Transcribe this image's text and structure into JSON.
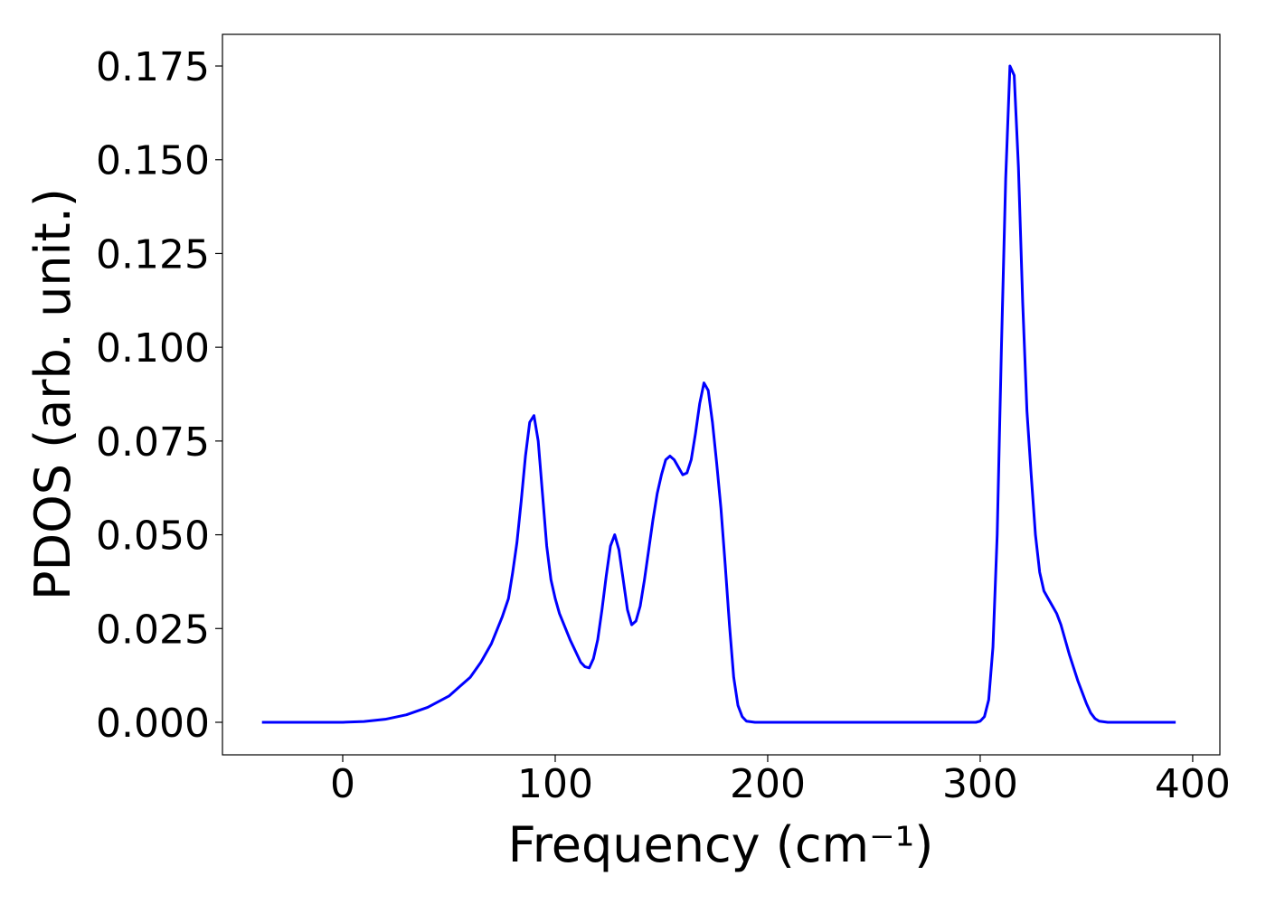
{
  "chart_data": {
    "type": "line",
    "xlabel": "Frequency (cm⁻¹)",
    "ylabel": "PDOS (arb. unit.)",
    "series": [
      {
        "color": "#0000ff",
        "x": [
          -38,
          0,
          10,
          20,
          30,
          40,
          50,
          60,
          65,
          70,
          75,
          78,
          80,
          82,
          84,
          86,
          88,
          90,
          92,
          94,
          96,
          98,
          100,
          102,
          107,
          112,
          114,
          116,
          118,
          120,
          122,
          124,
          126,
          128,
          130,
          132,
          134,
          136,
          138,
          140,
          142,
          144,
          146,
          148,
          150,
          152,
          154,
          156,
          158,
          160,
          162,
          164,
          166,
          168,
          170,
          172,
          174,
          176,
          178,
          180,
          182,
          184,
          186,
          188,
          190,
          194,
          298,
          300,
          302,
          304,
          306,
          308,
          310,
          312,
          314,
          316,
          318,
          320,
          322,
          324,
          326,
          328,
          330,
          332,
          334,
          336,
          338,
          340,
          342,
          344,
          346,
          348,
          350,
          352,
          354,
          356,
          360,
          392
        ],
        "y": [
          0,
          0,
          0.0002,
          0.0008,
          0.002,
          0.004,
          0.007,
          0.012,
          0.016,
          0.021,
          0.028,
          0.033,
          0.04,
          0.048,
          0.059,
          0.071,
          0.08,
          0.0818,
          0.075,
          0.061,
          0.047,
          0.038,
          0.033,
          0.029,
          0.022,
          0.016,
          0.0148,
          0.0145,
          0.017,
          0.022,
          0.03,
          0.039,
          0.047,
          0.05,
          0.046,
          0.038,
          0.03,
          0.026,
          0.027,
          0.031,
          0.038,
          0.046,
          0.054,
          0.061,
          0.066,
          0.07,
          0.071,
          0.07,
          0.068,
          0.066,
          0.0665,
          0.07,
          0.077,
          0.085,
          0.0905,
          0.0885,
          0.08,
          0.069,
          0.057,
          0.042,
          0.026,
          0.012,
          0.0045,
          0.0015,
          0.0003,
          0,
          0,
          0.0003,
          0.0015,
          0.006,
          0.02,
          0.05,
          0.1,
          0.145,
          0.175,
          0.1725,
          0.148,
          0.112,
          0.083,
          0.066,
          0.05,
          0.04,
          0.035,
          0.033,
          0.031,
          0.029,
          0.026,
          0.022,
          0.018,
          0.0145,
          0.011,
          0.008,
          0.005,
          0.0025,
          0.001,
          0.0003,
          0,
          0
        ]
      }
    ],
    "xlim": [
      -56.6,
      412.8
    ],
    "ylim": [
      -0.00868,
      0.18344
    ],
    "xticks": [
      0,
      100,
      200,
      300,
      400
    ],
    "yticks": [
      {
        "value": 0,
        "label": "0.000"
      },
      {
        "value": 0.025,
        "label": "0.025"
      },
      {
        "value": 0.05,
        "label": "0.050"
      },
      {
        "value": 0.075,
        "label": "0.075"
      },
      {
        "value": 0.1,
        "label": "0.100"
      },
      {
        "value": 0.125,
        "label": "0.125"
      },
      {
        "value": 0.15,
        "label": "0.150"
      },
      {
        "value": 0.175,
        "label": "0.175"
      }
    ]
  }
}
